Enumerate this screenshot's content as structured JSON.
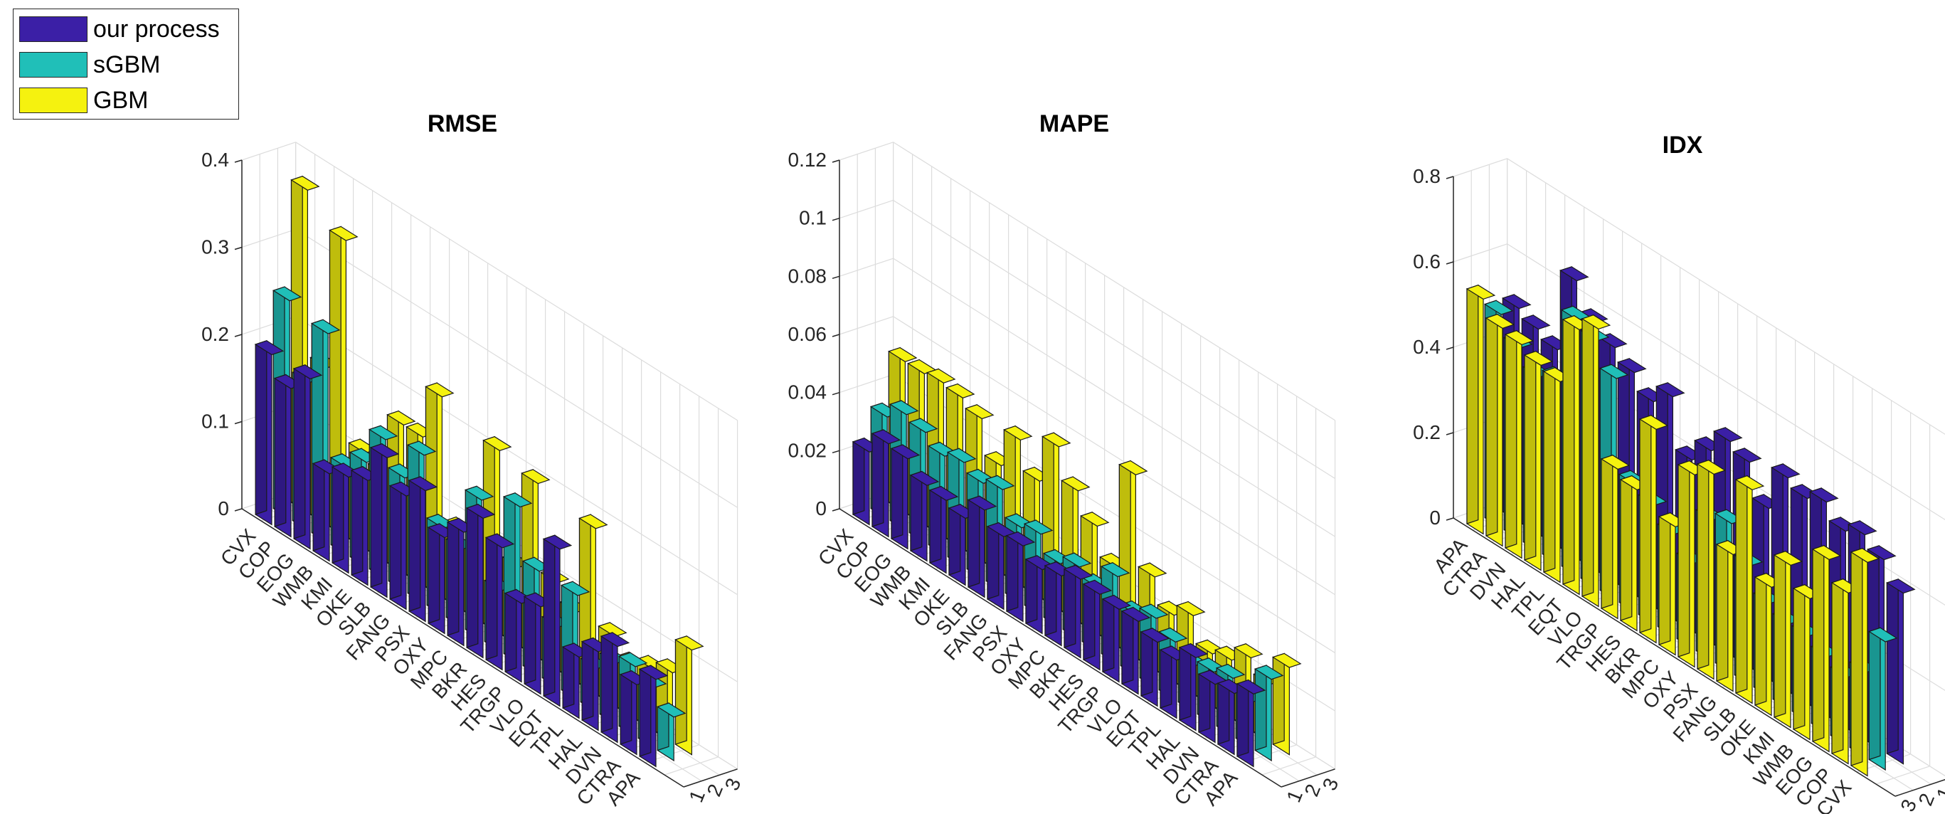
{
  "legend": {
    "items": [
      {
        "label": "our process",
        "color": "#3b1fa6"
      },
      {
        "label": "sGBM",
        "color": "#20bfb8"
      },
      {
        "label": "GBM",
        "color": "#f5f20f"
      }
    ]
  },
  "chart_data": [
    {
      "type": "bar",
      "title": "RMSE",
      "xlabel": "",
      "ylabel": "",
      "ylim": [
        0,
        0.4
      ],
      "yticks": [
        "0",
        "0.1",
        "0.2",
        "0.3",
        "0.4"
      ],
      "depth_ticks": [
        "1",
        "2",
        "3"
      ],
      "categories": [
        "CVX",
        "COP",
        "EOG",
        "WMB",
        "KMI",
        "OKE",
        "SLB",
        "FANG",
        "PSX",
        "OXY",
        "MPC",
        "BKR",
        "HES",
        "TRGP",
        "VLO",
        "EQT",
        "TPL",
        "HAL",
        "DVN",
        "CTRA",
        "APA"
      ],
      "series": [
        {
          "name": "our process",
          "values": [
            0.195,
            0.17,
            0.195,
            0.1,
            0.11,
            0.12,
            0.16,
            0.13,
            0.15,
            0.11,
            0.13,
            0.16,
            0.14,
            0.09,
            0.1,
            0.18,
            0.07,
            0.09,
            0.11,
            0.08,
            0.1
          ]
        },
        {
          "name": "sGBM",
          "values": [
            0.25,
            0.17,
            0.24,
            0.1,
            0.12,
            0.16,
            0.13,
            0.17,
            0.1,
            0.09,
            0.16,
            0.07,
            0.18,
            0.12,
            0.07,
            0.12,
            0.05,
            0.07,
            0.08,
            0.07,
            0.05
          ]
        },
        {
          "name": "GBM",
          "values": [
            0.37,
            0.18,
            0.34,
            0.11,
            0.1,
            0.17,
            0.17,
            0.23,
            0.09,
            0.08,
            0.21,
            0.09,
            0.2,
            0.1,
            0.08,
            0.19,
            0.08,
            0.06,
            0.07,
            0.08,
            0.12
          ]
        }
      ]
    },
    {
      "type": "bar",
      "title": "MAPE",
      "xlabel": "",
      "ylabel": "",
      "ylim": [
        0,
        0.12
      ],
      "yticks": [
        "0",
        "0.02",
        "0.04",
        "0.06",
        "0.08",
        "0.1",
        "0.12"
      ],
      "depth_ticks": [
        "1",
        "2",
        "3"
      ],
      "categories": [
        "CVX",
        "COP",
        "EOG",
        "WMB",
        "KMI",
        "OKE",
        "SLB",
        "FANG",
        "PSX",
        "OXY",
        "MPC",
        "BKR",
        "HES",
        "TRGP",
        "VLO",
        "EQT",
        "TPL",
        "HAL",
        "DVN",
        "CTRA",
        "APA"
      ],
      "series": [
        {
          "name": "our process",
          "values": [
            0.025,
            0.032,
            0.031,
            0.026,
            0.025,
            0.023,
            0.03,
            0.025,
            0.026,
            0.022,
            0.024,
            0.027,
            0.026,
            0.025,
            0.025,
            0.022,
            0.02,
            0.025,
            0.02,
            0.021,
            0.025
          ]
        },
        {
          "name": "sGBM",
          "values": [
            0.035,
            0.04,
            0.038,
            0.034,
            0.036,
            0.033,
            0.035,
            0.026,
            0.028,
            0.022,
            0.025,
            0.022,
            0.03,
            0.021,
            0.024,
            0.02,
            0.016,
            0.018,
            0.02,
            0.016,
            0.028
          ]
        },
        {
          "name": "GBM",
          "values": [
            0.052,
            0.052,
            0.053,
            0.052,
            0.049,
            0.037,
            0.05,
            0.04,
            0.056,
            0.045,
            0.037,
            0.027,
            0.063,
            0.032,
            0.023,
            0.027,
            0.018,
            0.02,
            0.025,
            0.02,
            0.03
          ]
        }
      ]
    },
    {
      "type": "bar",
      "title": "IDX",
      "xlabel": "",
      "ylabel": "",
      "ylim": [
        0,
        0.8
      ],
      "yticks": [
        "0",
        "0.2",
        "0.4",
        "0.6",
        "0.8"
      ],
      "depth_ticks": [
        "3",
        "2",
        "1"
      ],
      "categories": [
        "APA",
        "CTRA",
        "DVN",
        "HAL",
        "TPL",
        "EQT",
        "VLO",
        "TRGP",
        "HES",
        "BKR",
        "MPC",
        "OXY",
        "PSX",
        "FANG",
        "SLB",
        "OKE",
        "KMI",
        "WMB",
        "EOG",
        "COP",
        "CVX"
      ],
      "series": [
        {
          "name": "GBM",
          "values": [
            0.55,
            0.51,
            0.5,
            0.48,
            0.47,
            0.62,
            0.65,
            0.35,
            0.33,
            0.5,
            0.3,
            0.45,
            0.48,
            0.32,
            0.5,
            0.3,
            0.38,
            0.33,
            0.45,
            0.4,
            0.5
          ]
        },
        {
          "name": "sGBM",
          "values": [
            0.5,
            0.45,
            0.41,
            0.43,
            0.6,
            0.58,
            0.52,
            0.3,
            0.28,
            0.24,
            0.2,
            0.33,
            0.35,
            0.28,
            0.22,
            0.2,
            0.2,
            0.18,
            0.16,
            0.2,
            0.3
          ]
        },
        {
          "name": "our process",
          "values": [
            0.5,
            0.48,
            0.46,
            0.65,
            0.58,
            0.55,
            0.52,
            0.48,
            0.52,
            0.4,
            0.45,
            0.5,
            0.48,
            0.4,
            0.5,
            0.48,
            0.5,
            0.46,
            0.48,
            0.45,
            0.4
          ]
        }
      ]
    }
  ]
}
